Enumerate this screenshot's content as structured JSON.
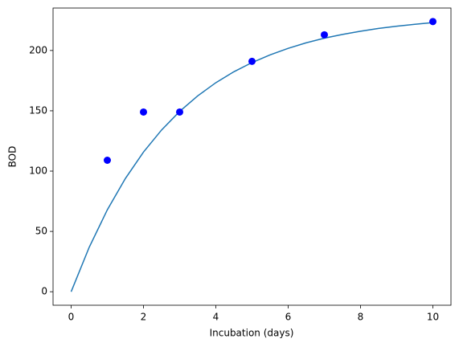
{
  "chart_data": {
    "type": "scatter",
    "x_label": "Incubation (days)",
    "y_label": "BOD",
    "xlim": [
      -0.5,
      10.5
    ],
    "ylim": [
      -11.2,
      235.2
    ],
    "xticks": [
      0,
      2,
      4,
      6,
      8,
      10
    ],
    "yticks": [
      0,
      50,
      100,
      150,
      200
    ],
    "grid": false,
    "series": [
      {
        "type": "line",
        "color": "#1f77b4",
        "x": [
          0,
          0.5,
          1,
          1.5,
          2,
          2.5,
          3,
          3.5,
          4,
          4.5,
          5,
          5.5,
          6,
          6.5,
          7,
          7.5,
          8,
          8.5,
          9,
          9.5,
          10
        ],
        "values": [
          0,
          36.9,
          67.9,
          93.9,
          115.8,
          134.1,
          149.5,
          162.4,
          173.3,
          182.4,
          190.0,
          196.4,
          201.8,
          206.4,
          210.2,
          213.3,
          216.0,
          218.3,
          220.1,
          221.7,
          223.1
        ]
      },
      {
        "type": "scatter",
        "color": "#0000ff",
        "x": [
          1,
          2,
          3,
          5,
          7,
          10
        ],
        "values": [
          109,
          149,
          149,
          191,
          213,
          224
        ]
      }
    ]
  }
}
